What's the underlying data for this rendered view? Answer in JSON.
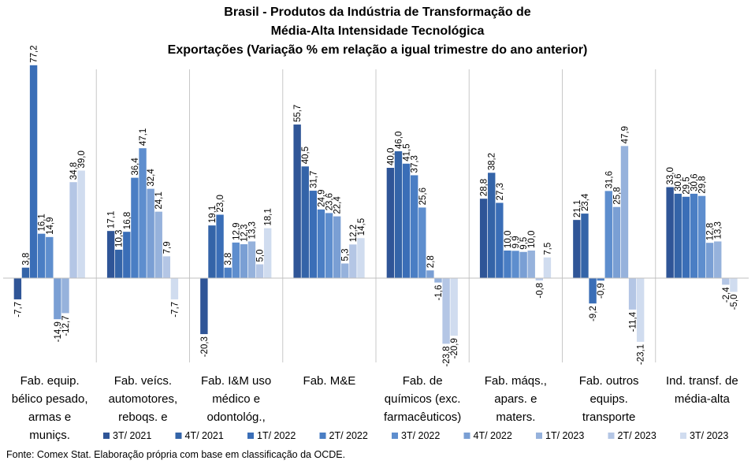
{
  "title_lines": [
    "Brasil - Produtos da Indústria de Transformação de",
    "Média-Alta Intensidade Tecnológica",
    "Exportações (Variação % em relação a igual trimestre do ano anterior)"
  ],
  "source": "Fonte: Comex Stat. Elaboração própria com base em classificação da OCDE.",
  "colors": [
    "#2F5597",
    "#3464A8",
    "#3A6EB7",
    "#4A7EC4",
    "#5E8ECE",
    "#7A9FD4",
    "#96B2DC",
    "#B4C6E5",
    "#D0DCEF"
  ],
  "chart_data": {
    "type": "bar",
    "title": "Brasil - Produtos da Indústria de Transformação de Média-Alta Intensidade Tecnológica - Exportações (Variação % em relação a igual trimestre do ano anterior)",
    "categories": [
      "Fab. equip. bélico pesado, armas e muniçs.",
      "Fab. veícs. automotores, reboqs. e",
      "Fab. I&M uso médico e odontológ.,",
      "Fab. M&E",
      "Fab. de químicos (exc. farmacêuticos)",
      "Fab. máqs., apars. e maters.",
      "Fab. outros equips. transporte",
      "Ind. transf. de média-alta"
    ],
    "category_lines": [
      [
        "Fab. equip.",
        "bélico pesado,",
        "armas e",
        "muniçs."
      ],
      [
        "Fab. veícs.",
        "automotores,",
        "reboqs. e"
      ],
      [
        "Fab. I&M uso",
        "médico e",
        "odontológ.,"
      ],
      [
        "Fab. M&E"
      ],
      [
        "Fab. de",
        "químicos (exc.",
        "farmacêuticos)"
      ],
      [
        "Fab. máqs.,",
        "apars. e",
        "maters."
      ],
      [
        "Fab. outros",
        "equips.",
        "transporte"
      ],
      [
        "Ind. transf. de",
        "média-alta"
      ]
    ],
    "series": [
      {
        "name": "3T/ 2021",
        "values": [
          -7.7,
          17.1,
          -20.3,
          55.7,
          40.0,
          28.8,
          21.1,
          33.0
        ]
      },
      {
        "name": "4T/ 2021",
        "values": [
          3.8,
          10.3,
          19.1,
          40.5,
          46.0,
          38.2,
          23.4,
          30.6
        ]
      },
      {
        "name": "1T/ 2022",
        "values": [
          77.2,
          16.8,
          23.0,
          31.7,
          41.5,
          27.3,
          -9.2,
          29.5
        ]
      },
      {
        "name": "2T/ 2022",
        "values": [
          16.1,
          36.4,
          3.8,
          24.9,
          37.3,
          10.0,
          -0.9,
          30.6
        ]
      },
      {
        "name": "3T/ 2022",
        "values": [
          14.9,
          47.1,
          12.9,
          23.6,
          25.6,
          9.9,
          31.6,
          29.8
        ]
      },
      {
        "name": "4T/ 2022",
        "values": [
          -14.9,
          32.4,
          12.3,
          22.4,
          2.8,
          9.5,
          25.8,
          12.8
        ]
      },
      {
        "name": "1T/ 2023",
        "values": [
          -12.7,
          24.1,
          13.3,
          5.3,
          -1.6,
          10.0,
          47.9,
          13.3
        ]
      },
      {
        "name": "2T/ 2023",
        "values": [
          34.8,
          7.9,
          5.0,
          12.2,
          -23.8,
          -0.8,
          -11.4,
          -2.4
        ]
      },
      {
        "name": "3T/ 2023",
        "values": [
          39.0,
          -7.7,
          18.1,
          14.5,
          -20.9,
          7.5,
          -23.1,
          -5.0
        ]
      }
    ],
    "data_labels": [
      [
        "-7,7",
        "3,8",
        "77,2",
        "16,1",
        "14,9",
        "-14,9",
        "-12,7",
        "34,8",
        "39,0"
      ],
      [
        "17,1",
        "10,3",
        "16,8",
        "36,4",
        "47,1",
        "32,4",
        "24,1",
        "7,9",
        "-7,7"
      ],
      [
        "-20,3",
        "19,1",
        "23,0",
        "3,8",
        "12,9",
        "12,3",
        "13,3",
        "5,0",
        "18,1"
      ],
      [
        "55,7",
        "40,5",
        "31,7",
        "24,9",
        "23,6",
        "22,4",
        "5,3",
        "12,2",
        "14,5"
      ],
      [
        "40,0",
        "46,0",
        "41,5",
        "37,3",
        "25,6",
        "2,8",
        "-1,6",
        "-23,8",
        "-20,9"
      ],
      [
        "28,8",
        "38,2",
        "27,3",
        "10,0",
        "9,9",
        "9,5",
        "10,0",
        "-0,8",
        "7,5"
      ],
      [
        "21,1",
        "23,4",
        "-9,2",
        "-0,9",
        "31,6",
        "25,8",
        "47,9",
        "-11,4",
        "-23,1"
      ],
      [
        "33,0",
        "30,6",
        "29,5",
        "30,6",
        "29,8",
        "12,8",
        "13,3",
        "-2,4",
        "-5,0"
      ]
    ],
    "ylim": [
      -32,
      85
    ],
    "legend_position": "bottom",
    "grid": false
  }
}
